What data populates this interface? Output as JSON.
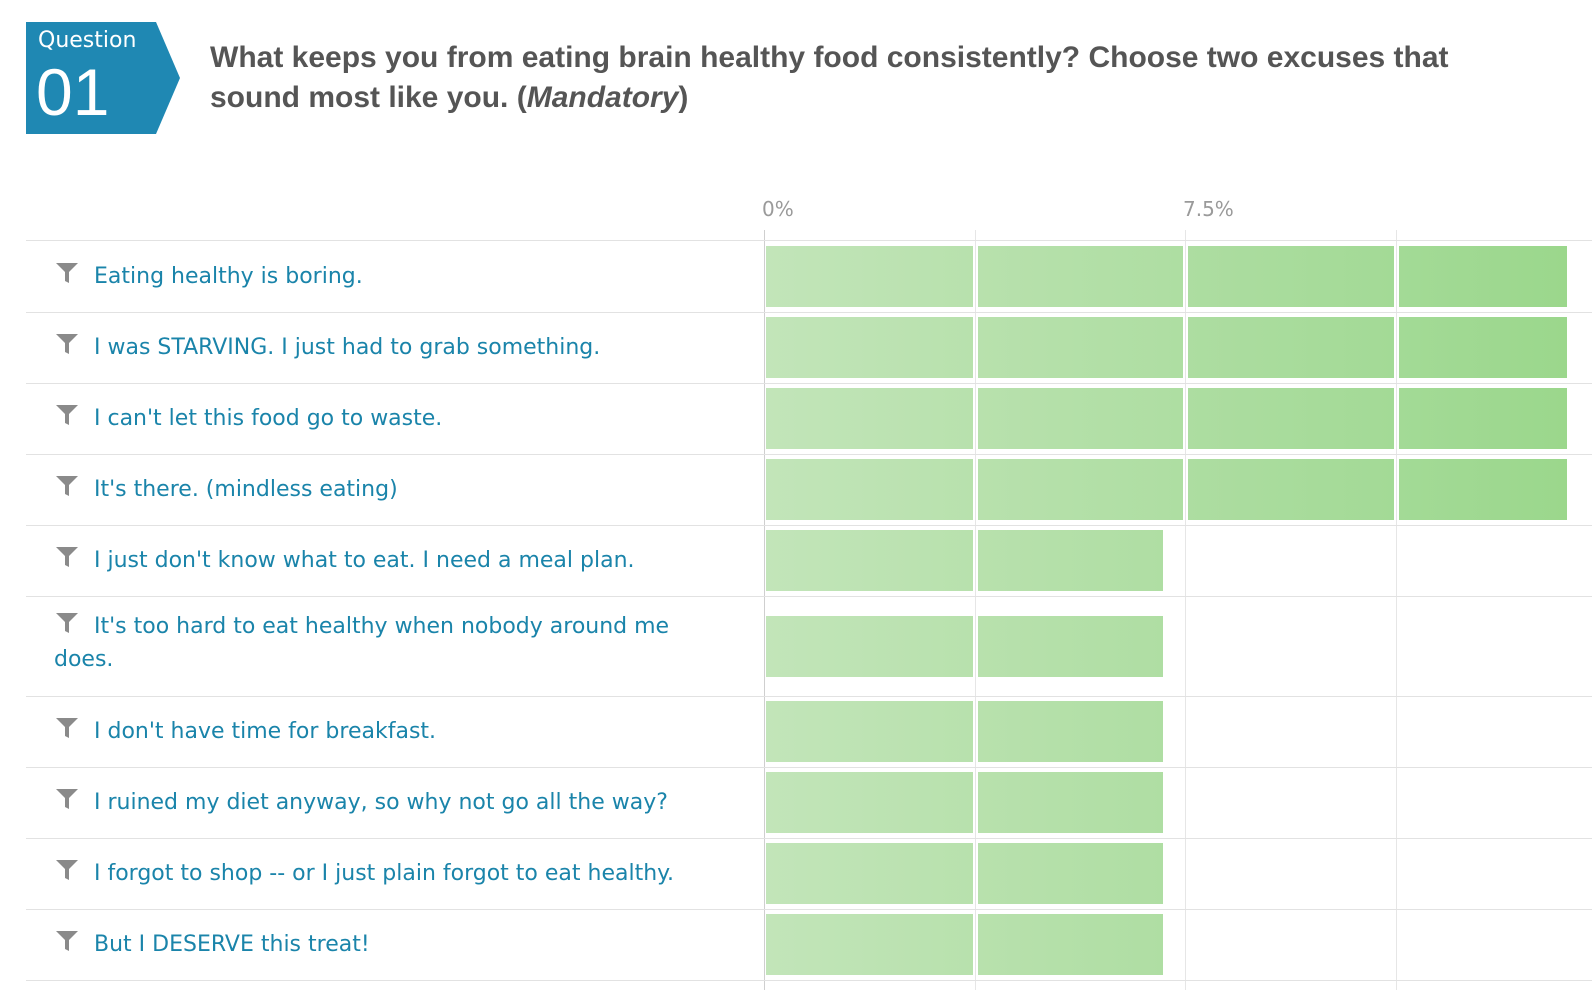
{
  "question": {
    "badge_label": "Question",
    "badge_number": "01",
    "text": "What keeps you from eating brain healthy food consistently? Choose two excuses that sound most like you. (",
    "mandatory": "Mandatory",
    "text_end": ")"
  },
  "colors": {
    "accent": "#1f88b3",
    "label_text": "#1a84aa",
    "bar_light": "#c2e5b9",
    "bar_dark": "#99d68a"
  },
  "chart_data": {
    "type": "bar",
    "orientation": "horizontal",
    "categories": [
      "Eating healthy is boring.",
      "I was STARVING. I just had to grab something.",
      "I can't let this food go to waste.",
      "It's there. (mindless eating)",
      "I just don't know what to eat. I need a meal plan.",
      "It's too hard to eat healthy when nobody around me does.",
      "I don't have time for breakfast.",
      "I ruined my diet anyway, so why not go all the way?",
      "I forgot to shop -- or I just plain forgot to eat healthy.",
      "But I DESERVE this treat!"
    ],
    "values": [
      14.3,
      14.3,
      14.3,
      14.3,
      7.1,
      7.1,
      7.1,
      7.1,
      7.1,
      7.1
    ],
    "unit": "%",
    "x_ticks": [
      "0%",
      "7.5%"
    ],
    "xlim": [
      0,
      15
    ],
    "grid": true
  }
}
